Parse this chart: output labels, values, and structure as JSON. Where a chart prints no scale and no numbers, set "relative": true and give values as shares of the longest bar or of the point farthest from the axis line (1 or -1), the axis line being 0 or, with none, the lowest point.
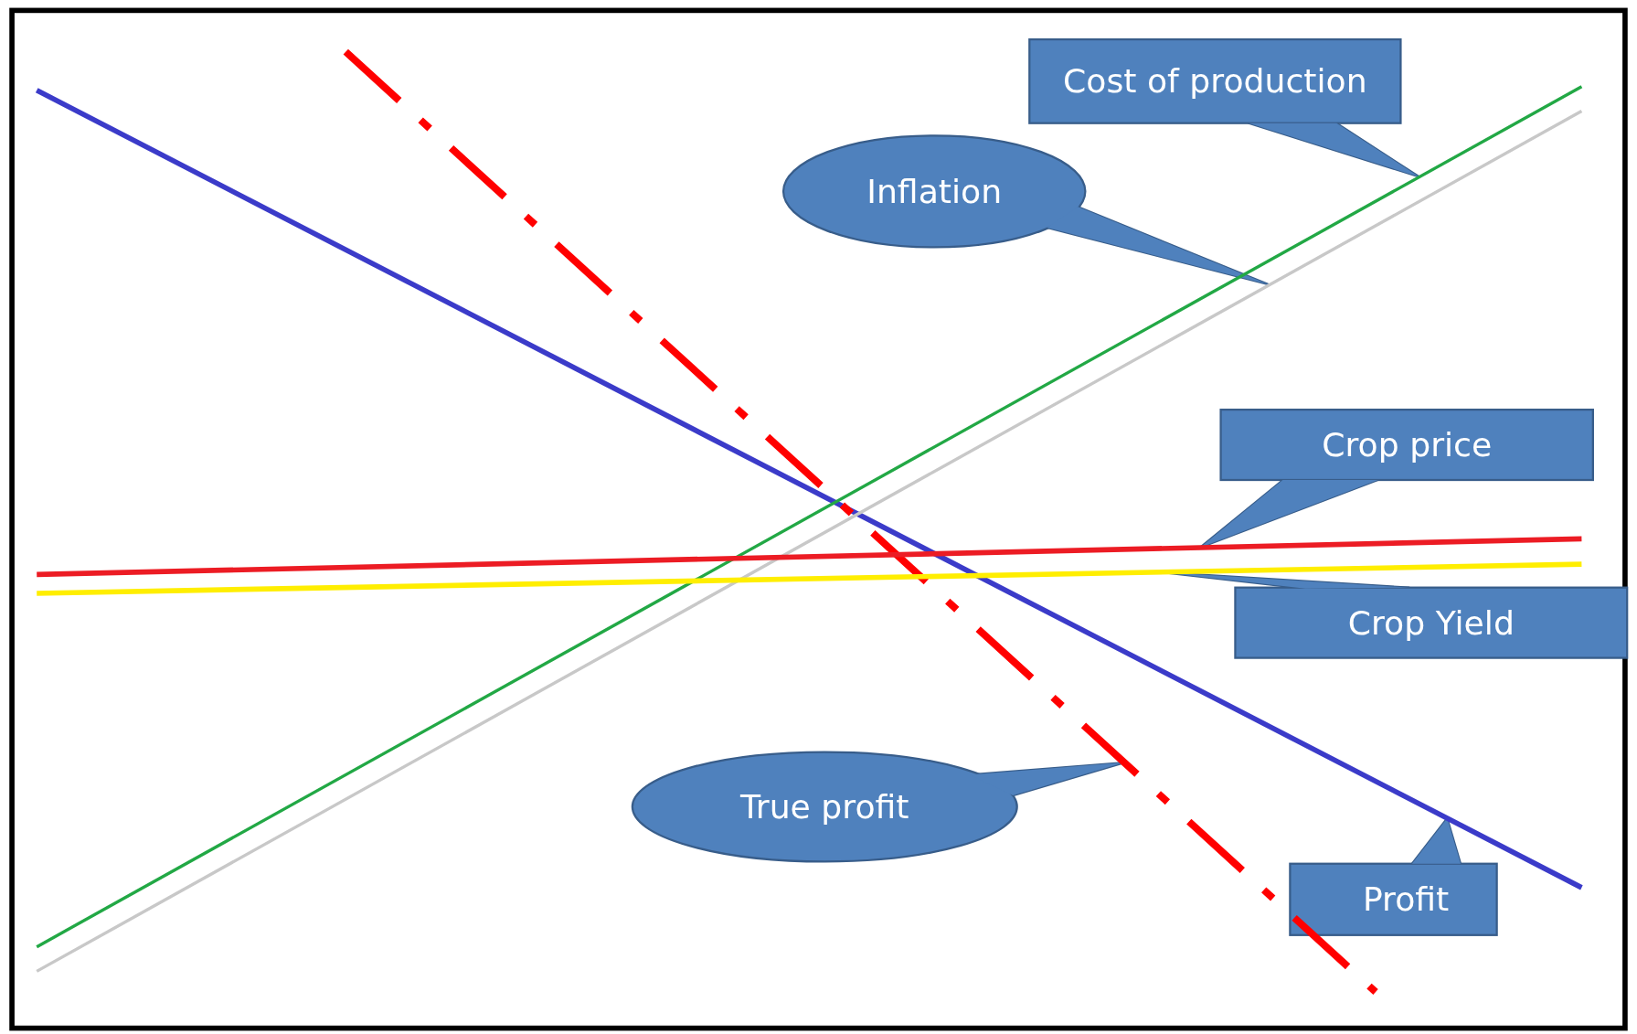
{
  "chart_data": {
    "type": "line",
    "relative": true,
    "legend": false,
    "categories": [
      null,
      null,
      null,
      null,
      null,
      null,
      null,
      null,
      null,
      null,
      null,
      null,
      null,
      null,
      null,
      null
    ],
    "series": [
      {
        "name": "Profit",
        "color": "#3b3bc9",
        "values": [
          0.959,
          null,
          null,
          null,
          null,
          null,
          null,
          null,
          null,
          null,
          null,
          null,
          null,
          null,
          null,
          0.111
        ]
      },
      {
        "name": "True profit",
        "color": "#ff0000",
        "line_style": "dashed",
        "values": [
          null,
          null,
          null,
          1.0,
          null,
          null,
          null,
          null,
          null,
          null,
          null,
          null,
          null,
          0.0,
          null,
          null
        ]
      },
      {
        "name": "Cost of production",
        "color": "#22a845",
        "values": [
          0.048,
          null,
          null,
          null,
          null,
          null,
          null,
          null,
          null,
          null,
          null,
          null,
          null,
          null,
          null,
          0.963
        ]
      },
      {
        "name": "Inflation",
        "color": "#c8c8c8",
        "values": [
          0.022,
          null,
          null,
          null,
          null,
          null,
          null,
          null,
          null,
          null,
          null,
          null,
          null,
          null,
          null,
          0.937
        ]
      },
      {
        "name": "Crop price",
        "color": "#ec1c24",
        "values": [
          0.444,
          null,
          null,
          null,
          null,
          null,
          null,
          null,
          null,
          null,
          null,
          null,
          null,
          null,
          null,
          0.482
        ]
      },
      {
        "name": "Crop Yield",
        "color": "#ffee00",
        "values": [
          0.424,
          null,
          null,
          null,
          null,
          null,
          null,
          null,
          null,
          null,
          null,
          null,
          null,
          null,
          null,
          0.455
        ]
      }
    ]
  }
}
